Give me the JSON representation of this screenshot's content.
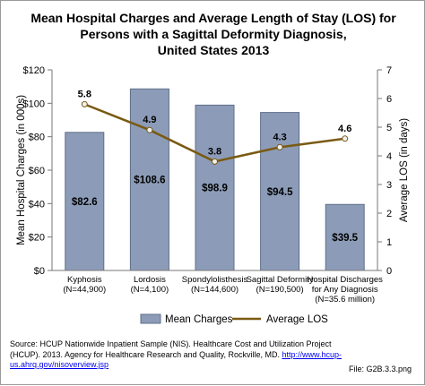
{
  "title": {
    "line1": "Mean Hospital Charges and Average Length of Stay (LOS) for",
    "line2": "Persons with a Sagittal Deformity Diagnosis,",
    "line3": "United States 2013"
  },
  "chart_data": {
    "type": "bar",
    "categories": [
      [
        "Kyphosis",
        "(N=44,900)"
      ],
      [
        "Lordosis",
        "(N=4,100)"
      ],
      [
        "Spondylolisthesis",
        "(N=144,600)"
      ],
      [
        "Sagittal Deformity",
        "(N=190,500)"
      ],
      [
        "Hospital Discharges",
        "for Any Diagnosis",
        "(N=35.6 million)"
      ]
    ],
    "series": [
      {
        "name": "Mean Charges",
        "type": "bar",
        "axis": "left",
        "values": [
          82.6,
          108.6,
          98.9,
          94.5,
          39.5
        ],
        "labels": [
          "$82.6",
          "$108.6",
          "$98.9",
          "$94.5",
          "$39.5"
        ],
        "color": "#8c9cb8"
      },
      {
        "name": "Average LOS",
        "type": "line",
        "axis": "right",
        "values": [
          5.8,
          4.9,
          3.8,
          4.3,
          4.6
        ],
        "labels": [
          "5.8",
          "4.9",
          "3.8",
          "4.3",
          "4.6"
        ],
        "color": "#7a5a12"
      }
    ],
    "ylabel": "Mean Hospital Charges (in 000s)",
    "y2label": "Average LOS (in days)",
    "ylim": [
      0,
      120
    ],
    "y2lim": [
      0,
      7
    ],
    "yticks": [
      "$0",
      "$20",
      "$40",
      "$60",
      "$80",
      "$100",
      "$120"
    ],
    "y2ticks": [
      "0",
      "1",
      "2",
      "3",
      "4",
      "5",
      "6",
      "7"
    ],
    "legend_position": "bottom",
    "grid": false
  },
  "source": {
    "text": "Source: HCUP Nationwide Inpatient Sample (NIS). Healthcare Cost and Utilization Project (HCUP). 2013. Agency for Healthcare Research and Quality, Rockville, MD. ",
    "link": "http://www.hcup-us.ahrq.gov/nisoverview.jsp"
  },
  "file_label": "File: G2B.3.3.png",
  "colors": {
    "bar_fill": "#8c9cb8",
    "bar_stroke": "#5f6f88",
    "line": "#7a5a12",
    "marker": "#f0f0f0"
  }
}
